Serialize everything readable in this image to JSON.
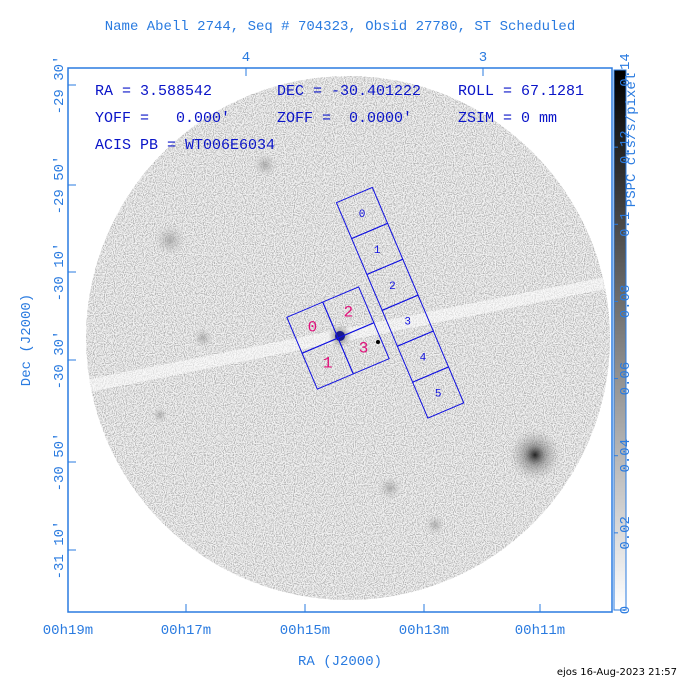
{
  "header": {
    "title": "Name Abell 2744, Seq # 704323, Obsid 27780, ST Scheduled"
  },
  "axes": {
    "top_ticks": [
      "4",
      "3"
    ],
    "bottom_ticks": [
      "00h19m",
      "00h17m",
      "00h15m",
      "00h13m",
      "00h11m"
    ],
    "left_ticks": [
      "-29 30'",
      "-29 50'",
      "-30 10'",
      "-30 30'",
      "-30 50'",
      "-31 10'"
    ],
    "x_label": "RA (J2000)",
    "y_label": "Dec (J2000)"
  },
  "info": {
    "ra": "RA = 3.588542",
    "dec": "DEC = -30.401222",
    "roll": "ROLL = 67.1281",
    "yoff": "YOFF =   0.000'",
    "zoff": "ZOFF =  0.0000'",
    "zsim": "ZSIM = 0 mm",
    "acis_pb": "ACIS PB = WT006E6034"
  },
  "colorbar": {
    "label": "PSPC cts/s/pixel",
    "ticks": [
      "0",
      "0.02",
      "0.04",
      "0.06",
      "0.08",
      "0.1",
      "0.12",
      "0.14"
    ]
  },
  "chips": {
    "i_array": [
      "0",
      "2",
      "1",
      "3"
    ],
    "s_array": [
      "0",
      "1",
      "2",
      "3",
      "4",
      "5"
    ]
  },
  "footer": "ejos 16-Aug-2023 21:57"
}
